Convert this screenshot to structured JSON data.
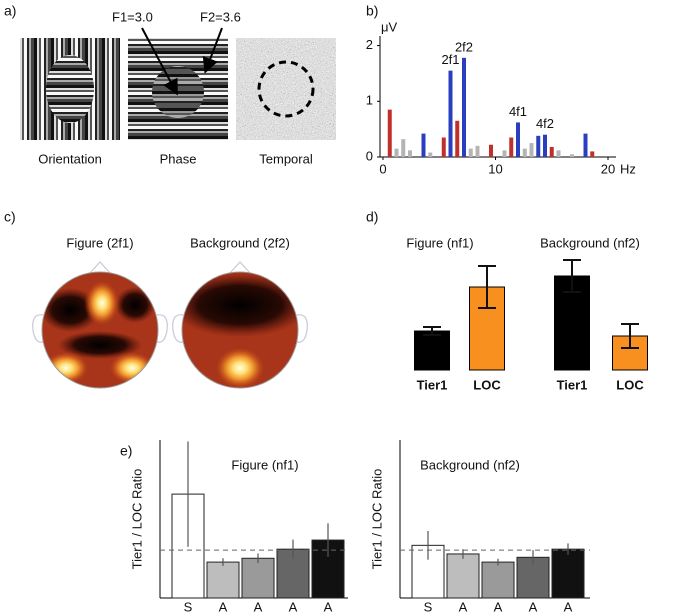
{
  "panel_a": {
    "label": "a)",
    "annotations": [
      "F1=3.0",
      "F2=3.6"
    ],
    "captions": [
      "Orientation",
      "Phase",
      "Temporal"
    ]
  },
  "panel_c": {
    "label": "c)",
    "titles": [
      "Figure (2f1)",
      "Background (2f2)"
    ]
  },
  "chart_data": [
    {
      "type": "bar",
      "panel_label": "b)",
      "y_label": "μV",
      "x_label": "Hz",
      "x": [
        0.6,
        1.2,
        1.8,
        2.4,
        3.6,
        4.2,
        5.4,
        6.0,
        6.6,
        7.2,
        7.8,
        8.4,
        9.6,
        10.8,
        11.4,
        12.0,
        12.6,
        13.2,
        13.8,
        14.4,
        15.0,
        15.6,
        16.8,
        18.0,
        18.6
      ],
      "values": [
        0.85,
        0.15,
        0.32,
        0.12,
        0.42,
        0.08,
        0.35,
        1.55,
        0.65,
        1.78,
        0.15,
        0.2,
        0.22,
        0.12,
        0.35,
        0.62,
        0.15,
        0.25,
        0.38,
        0.4,
        0.18,
        0.12,
        0.05,
        0.42,
        0.1
      ],
      "colors": [
        "#c0302a",
        "#b4b4b4",
        "#b4b4b4",
        "#b4b4b4",
        "#2a3fbf",
        "#b4b4b4",
        "#c0302a",
        "#2a3fbf",
        "#c0302a",
        "#2a3fbf",
        "#b4b4b4",
        "#b4b4b4",
        "#c0302a",
        "#b4b4b4",
        "#c0302a",
        "#2a3fbf",
        "#b4b4b4",
        "#b4b4b4",
        "#2a3fbf",
        "#2a3fbf",
        "#c0302a",
        "#b4b4b4",
        "#b4b4b4",
        "#2a3fbf",
        "#c0302a"
      ],
      "xlim": [
        0,
        20
      ],
      "xticks": [
        0,
        10,
        20
      ],
      "ylim": [
        0,
        2.1
      ],
      "yticks": [
        0,
        1,
        2
      ],
      "annotation_color": "#2a3fbf",
      "annotations": [
        {
          "text": "2f1",
          "x": 6.0
        },
        {
          "text": "2f2",
          "x": 7.2
        },
        {
          "text": "4f1",
          "x": 12.0
        },
        {
          "text": "4f2",
          "x": 14.4
        }
      ]
    },
    {
      "type": "bar",
      "panel_label": "d)",
      "title": "Figure (nf1)",
      "categories": [
        "Tier1",
        "LOC"
      ],
      "values": [
        3.9,
        8.3
      ],
      "errors": [
        0.4,
        2.1
      ],
      "colors": [
        "#000000",
        "#f7901e"
      ]
    },
    {
      "type": "bar",
      "title": "Background (nf2)",
      "categories": [
        "Tier1",
        "LOC"
      ],
      "values": [
        9.4,
        3.4
      ],
      "errors": [
        1.6,
        1.2
      ],
      "colors": [
        "#000000",
        "#f7901e"
      ]
    },
    {
      "type": "bar",
      "panel_label": "e)",
      "title": "Figure (nf1)",
      "y_label": "Tier1 / LOC Ratio",
      "categories": [
        "S",
        "A",
        "A",
        "A",
        "A"
      ],
      "values": [
        2.17,
        0.75,
        0.83,
        1.02,
        1.21
      ],
      "errors": [
        1.1,
        0.08,
        0.1,
        0.2,
        0.35
      ],
      "colors": [
        "#ffffff",
        "#bdbdbd",
        "#9a9a9a",
        "#666666",
        "#111111"
      ],
      "ylim": [
        0,
        3.3
      ],
      "hline": 1
    },
    {
      "type": "bar",
      "title": "Background (nf2)",
      "y_label": "Tier1 / LOC Ratio",
      "categories": [
        "S",
        "A",
        "A",
        "A",
        "A"
      ],
      "values": [
        1.1,
        0.92,
        0.75,
        0.85,
        1.02
      ],
      "errors": [
        0.3,
        0.1,
        0.07,
        0.15,
        0.12
      ],
      "colors": [
        "#ffffff",
        "#bdbdbd",
        "#9a9a9a",
        "#666666",
        "#111111"
      ],
      "ylim": [
        0,
        3.3
      ],
      "hline": 1
    }
  ]
}
